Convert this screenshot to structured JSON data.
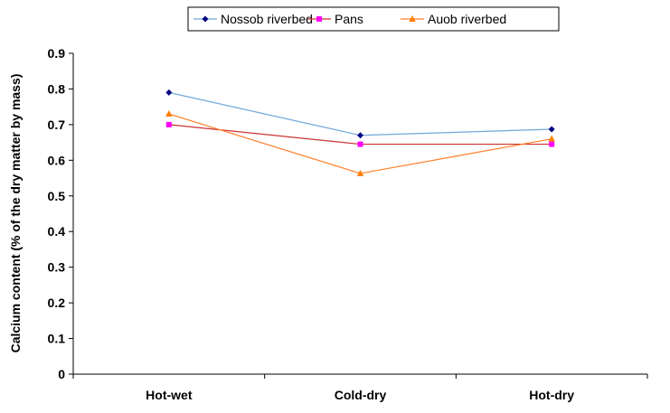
{
  "chart_data": {
    "type": "line",
    "categories": [
      "Hot-wet",
      "Cold-dry",
      "Hot-dry"
    ],
    "series": [
      {
        "name": "Nossob riverbed",
        "values": [
          0.79,
          0.67,
          0.687
        ],
        "color": "#6fa8dc",
        "marker_color": "#000080",
        "marker": "diamond"
      },
      {
        "name": "Pans",
        "values": [
          0.7,
          0.645,
          0.645
        ],
        "color": "#cc3333",
        "marker_color": "#ff00ff",
        "marker": "square"
      },
      {
        "name": "Auob riverbed",
        "values": [
          0.73,
          0.563,
          0.66
        ],
        "color": "#ff7f27",
        "marker_color": "#ff7f00",
        "marker": "triangle"
      }
    ],
    "title": "",
    "xlabel": "",
    "ylabel": "Calcium content (% of the dry matter by mass)",
    "ylim": [
      0,
      0.9
    ],
    "yticks": [
      "0",
      "0.1",
      "0.2",
      "0.3",
      "0.4",
      "0.5",
      "0.6",
      "0.7",
      "0.8",
      "0.9"
    ],
    "grid": false,
    "legend_position": "top-center"
  }
}
